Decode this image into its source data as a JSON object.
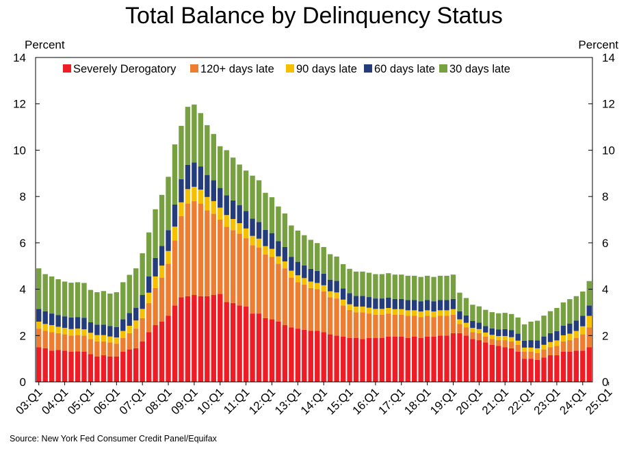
{
  "chart_data": {
    "type": "bar",
    "stacked": true,
    "title": "Total Balance by Delinquency Status",
    "ylabel_left": "Percent",
    "ylabel_right": "Percent",
    "xlabel": "",
    "ylim": [
      0,
      14
    ],
    "yticks": [
      "0",
      "2",
      "4",
      "6",
      "8",
      "10",
      "12",
      "14"
    ],
    "legend_position": "top",
    "grid": false,
    "source": "Source: New York Fed Consumer Credit Panel/Equifax",
    "x_tick_labels": [
      "03:Q1",
      "04:Q1",
      "05:Q1",
      "06:Q1",
      "07:Q1",
      "08:Q1",
      "09:Q1",
      "10:Q1",
      "11:Q1",
      "12:Q1",
      "13:Q1",
      "14:Q1",
      "15:Q1",
      "16:Q1",
      "17:Q1",
      "18:Q1",
      "19:Q1",
      "20:Q1",
      "21:Q1",
      "22:Q1",
      "23:Q1",
      "24:Q1",
      "25:Q1"
    ],
    "series": [
      {
        "name": "Severely Derogatory",
        "color": "#ee1c25",
        "values": [
          1.5,
          1.45,
          1.35,
          1.38,
          1.35,
          1.3,
          1.32,
          1.3,
          1.2,
          1.1,
          1.15,
          1.1,
          1.1,
          1.3,
          1.4,
          1.45,
          1.75,
          2.15,
          2.45,
          2.6,
          2.85,
          3.3,
          3.65,
          3.7,
          3.75,
          3.7,
          3.7,
          3.75,
          3.8,
          3.45,
          3.4,
          3.3,
          3.25,
          2.95,
          2.95,
          2.75,
          2.7,
          2.6,
          2.45,
          2.35,
          2.3,
          2.25,
          2.2,
          2.2,
          2.15,
          2.05,
          2.0,
          1.95,
          1.9,
          1.9,
          1.85,
          1.9,
          1.9,
          1.9,
          1.95,
          1.95,
          1.95,
          1.9,
          1.95,
          1.9,
          1.95,
          1.95,
          2.0,
          2.0,
          2.1,
          2.1,
          2.0,
          1.85,
          1.8,
          1.7,
          1.6,
          1.55,
          1.5,
          1.45,
          1.3,
          1.0,
          1.0,
          0.95,
          1.05,
          1.15,
          1.15,
          1.3,
          1.3,
          1.35,
          1.35,
          1.5
        ]
      },
      {
        "name": "120+ days late",
        "color": "#ed7d31",
        "values": [
          0.8,
          0.75,
          0.8,
          0.72,
          0.7,
          0.7,
          0.7,
          0.7,
          0.65,
          0.65,
          0.6,
          0.6,
          0.55,
          0.6,
          0.7,
          0.85,
          1.0,
          1.25,
          1.6,
          1.9,
          2.25,
          2.8,
          3.5,
          4.0,
          4.05,
          4.0,
          3.7,
          3.5,
          3.2,
          3.25,
          3.15,
          3.1,
          2.95,
          2.95,
          2.85,
          2.75,
          2.7,
          2.5,
          2.45,
          2.15,
          2.0,
          1.95,
          1.85,
          1.8,
          1.75,
          1.6,
          1.6,
          1.35,
          1.2,
          1.1,
          1.15,
          1.05,
          1.0,
          1.0,
          1.0,
          0.95,
          0.95,
          0.95,
          0.9,
          0.9,
          0.9,
          0.85,
          0.85,
          0.85,
          0.8,
          0.4,
          0.35,
          0.3,
          0.3,
          0.25,
          0.25,
          0.25,
          0.3,
          0.3,
          0.3,
          0.3,
          0.3,
          0.3,
          0.35,
          0.35,
          0.4,
          0.45,
          0.5,
          0.55,
          0.7,
          0.85
        ]
      },
      {
        "name": "90 days late",
        "color": "#f5c000",
        "values": [
          0.3,
          0.3,
          0.3,
          0.28,
          0.28,
          0.28,
          0.28,
          0.27,
          0.27,
          0.27,
          0.27,
          0.26,
          0.27,
          0.3,
          0.32,
          0.35,
          0.4,
          0.45,
          0.5,
          0.52,
          0.55,
          0.6,
          0.6,
          0.62,
          0.62,
          0.6,
          0.58,
          0.55,
          0.52,
          0.5,
          0.48,
          0.45,
          0.42,
          0.4,
          0.38,
          0.36,
          0.34,
          0.32,
          0.3,
          0.3,
          0.3,
          0.28,
          0.28,
          0.27,
          0.27,
          0.26,
          0.26,
          0.25,
          0.25,
          0.25,
          0.25,
          0.25,
          0.25,
          0.25,
          0.24,
          0.24,
          0.24,
          0.24,
          0.24,
          0.24,
          0.24,
          0.24,
          0.24,
          0.24,
          0.24,
          0.2,
          0.2,
          0.18,
          0.18,
          0.18,
          0.18,
          0.18,
          0.18,
          0.18,
          0.18,
          0.18,
          0.18,
          0.2,
          0.2,
          0.22,
          0.24,
          0.26,
          0.28,
          0.3,
          0.35,
          0.5
        ]
      },
      {
        "name": "60 days late",
        "color": "#243c7c",
        "values": [
          0.55,
          0.55,
          0.5,
          0.5,
          0.5,
          0.5,
          0.5,
          0.5,
          0.45,
          0.45,
          0.45,
          0.45,
          0.45,
          0.5,
          0.55,
          0.55,
          0.6,
          0.7,
          0.8,
          0.85,
          0.9,
          0.95,
          1.0,
          1.05,
          1.05,
          1.0,
          0.95,
          0.9,
          0.85,
          0.85,
          0.8,
          0.78,
          0.75,
          0.75,
          0.72,
          0.7,
          0.68,
          0.65,
          0.62,
          0.6,
          0.58,
          0.55,
          0.55,
          0.52,
          0.5,
          0.5,
          0.5,
          0.48,
          0.48,
          0.46,
          0.46,
          0.46,
          0.45,
          0.45,
          0.45,
          0.44,
          0.44,
          0.44,
          0.44,
          0.44,
          0.44,
          0.44,
          0.44,
          0.44,
          0.44,
          0.35,
          0.32,
          0.3,
          0.28,
          0.28,
          0.28,
          0.28,
          0.3,
          0.3,
          0.3,
          0.3,
          0.32,
          0.34,
          0.36,
          0.38,
          0.4,
          0.42,
          0.44,
          0.45,
          0.45,
          0.45
        ]
      },
      {
        "name": "30 days late",
        "color": "#77a040",
        "values": [
          1.75,
          1.6,
          1.6,
          1.55,
          1.5,
          1.5,
          1.5,
          1.5,
          1.4,
          1.4,
          1.45,
          1.4,
          1.5,
          1.6,
          1.65,
          1.7,
          1.8,
          1.9,
          2.1,
          2.2,
          2.3,
          2.6,
          2.3,
          2.5,
          2.5,
          2.3,
          2.15,
          2.0,
          1.8,
          1.95,
          1.85,
          1.75,
          1.75,
          1.85,
          1.8,
          1.6,
          1.55,
          1.5,
          1.45,
          1.35,
          1.35,
          1.3,
          1.25,
          1.2,
          1.15,
          1.1,
          1.05,
          1.05,
          1.05,
          1.05,
          1.05,
          1.05,
          1.05,
          1.05,
          1.05,
          1.05,
          1.05,
          1.05,
          1.05,
          1.05,
          1.05,
          1.05,
          1.05,
          1.05,
          1.05,
          0.8,
          0.75,
          0.7,
          0.7,
          0.7,
          0.7,
          0.7,
          0.7,
          0.7,
          0.7,
          0.7,
          0.8,
          0.85,
          0.9,
          0.95,
          1.0,
          1.0,
          1.05,
          1.05,
          1.05,
          1.05
        ]
      }
    ]
  }
}
